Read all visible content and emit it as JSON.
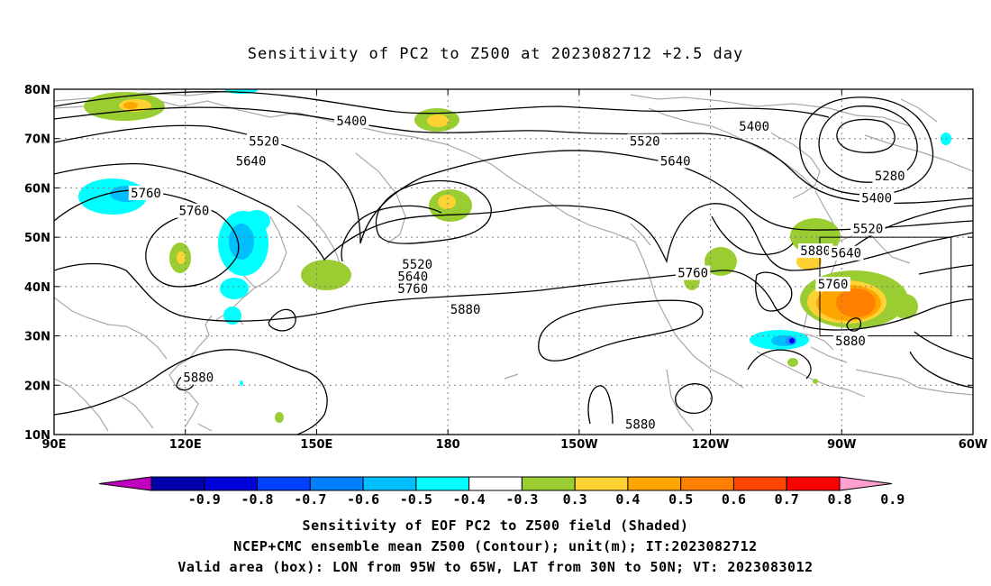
{
  "title": "Sensitivity of PC2 to Z500 at 2023082712 +2.5 day",
  "map": {
    "lon_range": [
      90,
      300
    ],
    "lat_range": [
      10,
      80
    ],
    "lat_ticks": [
      {
        "value": 80,
        "label": "80N"
      },
      {
        "value": 70,
        "label": "70N"
      },
      {
        "value": 60,
        "label": "60N"
      },
      {
        "value": 50,
        "label": "50N"
      },
      {
        "value": 40,
        "label": "40N"
      },
      {
        "value": 30,
        "label": "30N"
      },
      {
        "value": 20,
        "label": "20N"
      },
      {
        "value": 10,
        "label": "10N"
      }
    ],
    "lon_ticks": [
      {
        "value": 90,
        "label": "90E"
      },
      {
        "value": 120,
        "label": "120E"
      },
      {
        "value": 150,
        "label": "150E"
      },
      {
        "value": 180,
        "label": "180"
      },
      {
        "value": 210,
        "label": "150W"
      },
      {
        "value": 240,
        "label": "120W"
      },
      {
        "value": 270,
        "label": "90W"
      },
      {
        "value": 300,
        "label": "60W"
      }
    ],
    "valid_box": {
      "lon": [
        265,
        295
      ],
      "lat": [
        30,
        50
      ]
    },
    "contour_labels": [
      {
        "text": "5400",
        "lon": 158,
        "lat": 73.4
      },
      {
        "text": "5400",
        "lon": 250,
        "lat": 72.3
      },
      {
        "text": "5520",
        "lon": 138,
        "lat": 69.3
      },
      {
        "text": "5520",
        "lon": 225,
        "lat": 69.3
      },
      {
        "text": "5640",
        "lon": 135,
        "lat": 65.3
      },
      {
        "text": "5640",
        "lon": 232,
        "lat": 65.3
      },
      {
        "text": "5760",
        "lon": 111,
        "lat": 58.8
      },
      {
        "text": "5760",
        "lon": 122,
        "lat": 55.2
      },
      {
        "text": "5280",
        "lon": 281,
        "lat": 62.3
      },
      {
        "text": "5400",
        "lon": 278,
        "lat": 57.8
      },
      {
        "text": "5520",
        "lon": 276,
        "lat": 51.6
      },
      {
        "text": "5880",
        "lon": 264,
        "lat": 47.1
      },
      {
        "text": "5640",
        "lon": 271,
        "lat": 46.6
      },
      {
        "text": "5520",
        "lon": 173,
        "lat": 44.4
      },
      {
        "text": "5640",
        "lon": 172,
        "lat": 41.9
      },
      {
        "text": "5760",
        "lon": 172,
        "lat": 39.4
      },
      {
        "text": "5760",
        "lon": 236,
        "lat": 42.6
      },
      {
        "text": "5760",
        "lon": 268,
        "lat": 40.3
      },
      {
        "text": "5880",
        "lon": 184,
        "lat": 35.2
      },
      {
        "text": "5880",
        "lon": 272,
        "lat": 28.8
      },
      {
        "text": "5880",
        "lon": 123,
        "lat": 21.4
      },
      {
        "text": "5880",
        "lon": 224,
        "lat": 11.9
      }
    ],
    "colors": {
      "contour": "#000000",
      "coastline": "#a8a8a8",
      "grid": "#808080",
      "pos_03_04": "#9acd32",
      "pos_04_05": "#ffd233",
      "pos_05_06": "#ffa500",
      "pos_06_07": "#ff7f00",
      "neg_04_03": "#00ffff",
      "neg_05_04": "#00bfff",
      "neg_06_05": "#1e90ff",
      "neg_08_07": "#0000ff"
    }
  },
  "colorbar": {
    "colors": [
      "#c000c0",
      "#0000aa",
      "#0000d8",
      "#0040ff",
      "#0080ff",
      "#00bfff",
      "#00ffff",
      "#ffffff",
      "#9acd32",
      "#ffd233",
      "#ffa500",
      "#ff7f00",
      "#ff4500",
      "#ff0000",
      "#ffa0d0"
    ],
    "labels": [
      "-0.9",
      "-0.8",
      "-0.7",
      "-0.6",
      "-0.5",
      "-0.4",
      "-0.3",
      "0.3",
      "0.4",
      "0.5",
      "0.6",
      "0.7",
      "0.8",
      "0.9"
    ]
  },
  "captions": [
    "Sensitivity of EOF PC2 to Z500 field (Shaded)",
    "NCEP+CMC ensemble mean Z500 (Contour); unit(m); IT:2023082712",
    "Valid area (box): LON from 95W to 65W, LAT from 30N to 50N; VT: 2023083012"
  ]
}
